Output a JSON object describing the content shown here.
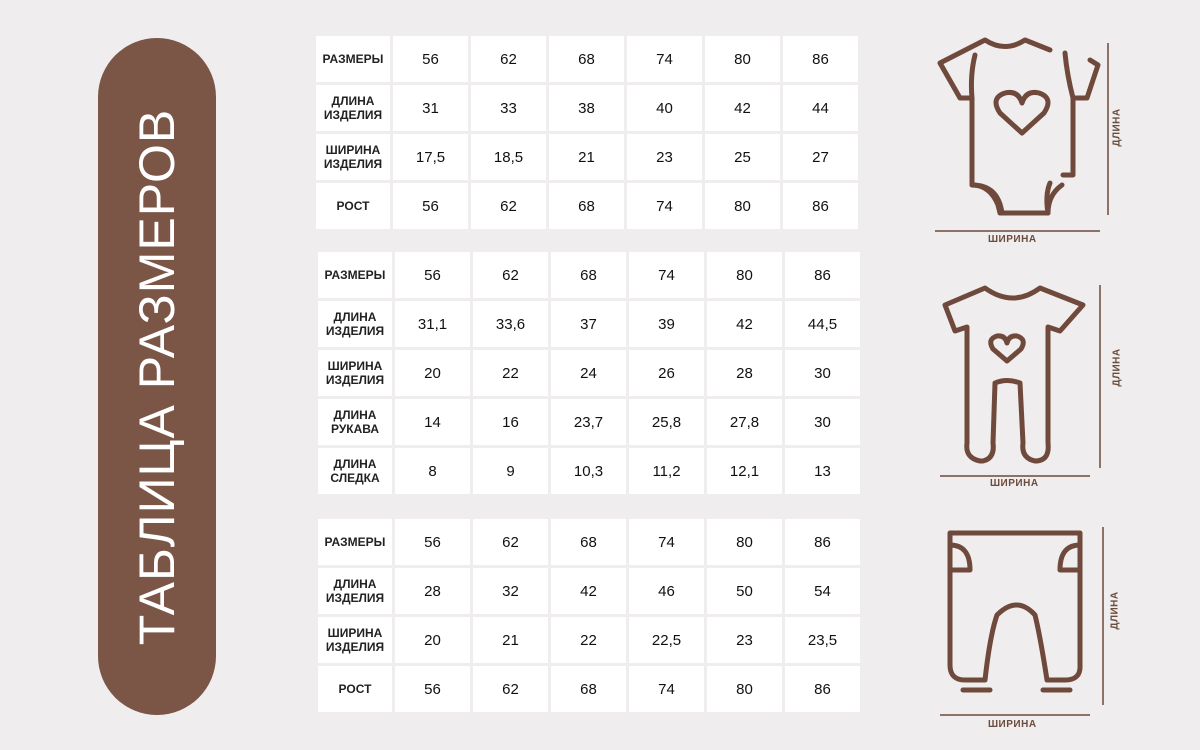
{
  "title": "ТАБЛИЦА РАЗМЕРОВ",
  "colors": {
    "brand": "#7b5647",
    "background": "#efeded",
    "cell": "#ffffff"
  },
  "tables": [
    {
      "icon": "bodysuit-icon",
      "rows": [
        {
          "label": "РАЗМЕРЫ",
          "values": [
            "56",
            "62",
            "68",
            "74",
            "80",
            "86"
          ]
        },
        {
          "label": "ДЛИНА\nИЗДЕЛИЯ",
          "values": [
            "31",
            "33",
            "38",
            "40",
            "42",
            "44"
          ]
        },
        {
          "label": "ШИРИНА\nИЗДЕЛИЯ",
          "values": [
            "17,5",
            "18,5",
            "21",
            "23",
            "25",
            "27"
          ]
        },
        {
          "label": "РОСТ",
          "values": [
            "56",
            "62",
            "68",
            "74",
            "80",
            "86"
          ]
        }
      ]
    },
    {
      "icon": "romper-icon",
      "rows": [
        {
          "label": "РАЗМЕРЫ",
          "values": [
            "56",
            "62",
            "68",
            "74",
            "80",
            "86"
          ]
        },
        {
          "label": "ДЛИНА\nИЗДЕЛИЯ",
          "values": [
            "31,1",
            "33,6",
            "37",
            "39",
            "42",
            "44,5"
          ]
        },
        {
          "label": "ШИРИНА\nИЗДЕЛИЯ",
          "values": [
            "20",
            "22",
            "24",
            "26",
            "28",
            "30"
          ]
        },
        {
          "label": "ДЛИНА\nРУКАВА",
          "values": [
            "14",
            "16",
            "23,7",
            "25,8",
            "27,8",
            "30"
          ]
        },
        {
          "label": "ДЛИНА\nСЛЕДКА",
          "values": [
            "8",
            "9",
            "10,3",
            "11,2",
            "12,1",
            "13"
          ]
        }
      ]
    },
    {
      "icon": "pants-icon",
      "rows": [
        {
          "label": "РАЗМЕРЫ",
          "values": [
            "56",
            "62",
            "68",
            "74",
            "80",
            "86"
          ]
        },
        {
          "label": "ДЛИНА\nИЗДЕЛИЯ",
          "values": [
            "28",
            "32",
            "42",
            "46",
            "50",
            "54"
          ]
        },
        {
          "label": "ШИРИНА\nИЗДЕЛИЯ",
          "values": [
            "20",
            "21",
            "22",
            "22,5",
            "23",
            "23,5"
          ]
        },
        {
          "label": "РОСТ",
          "values": [
            "56",
            "62",
            "68",
            "74",
            "80",
            "86"
          ]
        }
      ]
    }
  ],
  "dimensions": {
    "length": "ДЛИНА",
    "width": "ШИРИНА"
  }
}
